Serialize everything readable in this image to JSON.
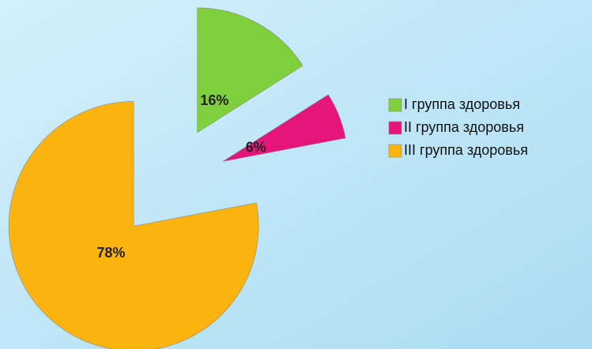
{
  "chart_data": {
    "type": "pie",
    "categories": [
      "I группа здоровья",
      "II группа здоровья",
      "III группа здоровья"
    ],
    "values": [
      16,
      6,
      78
    ],
    "value_labels": [
      "16%",
      "6%",
      "78%"
    ],
    "colors": [
      "#7fd03c",
      "#e6157a",
      "#fbb310"
    ],
    "exploded": true,
    "legend": "right"
  }
}
